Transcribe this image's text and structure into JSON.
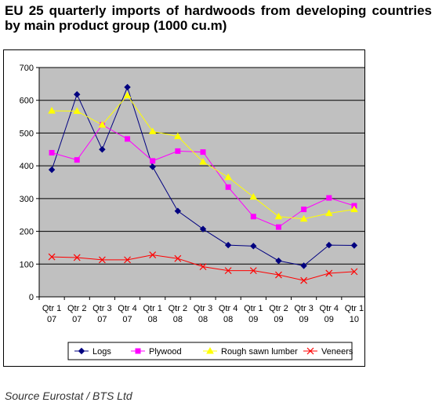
{
  "title": "EU 25 quarterly imports of hardwoods from developing countries by main product group (1000 cu.m)",
  "source": "Source Eurostat / BTS Ltd",
  "chart_data": {
    "type": "line",
    "categories": [
      [
        "Qtr 1",
        "07"
      ],
      [
        "Qtr 2",
        "07"
      ],
      [
        "Qtr 3",
        "07"
      ],
      [
        "Qtr 4",
        "07"
      ],
      [
        "Qtr 1",
        "08"
      ],
      [
        "Qtr 2",
        "08"
      ],
      [
        "Qtr 3",
        "08"
      ],
      [
        "Qtr 4",
        "08"
      ],
      [
        "Qtr 1",
        "09"
      ],
      [
        "Qtr 2",
        "09"
      ],
      [
        "Qtr 3",
        "09"
      ],
      [
        "Qtr 4",
        "09"
      ],
      [
        "Qtr 1",
        "10"
      ]
    ],
    "ylim": [
      0,
      700
    ],
    "yticks": [
      "0",
      "100",
      "200",
      "300",
      "400",
      "500",
      "600",
      "700"
    ],
    "grid": true,
    "legend_position": "bottom",
    "series": [
      {
        "name": "Logs",
        "color": "#000080",
        "marker": "diamond",
        "values": [
          388,
          618,
          450,
          640,
          397,
          262,
          207,
          158,
          155,
          110,
          95,
          158,
          157
        ]
      },
      {
        "name": "Plywood",
        "color": "#ff00ff",
        "marker": "square",
        "values": [
          440,
          418,
          525,
          482,
          415,
          445,
          442,
          335,
          245,
          213,
          267,
          302,
          278
        ]
      },
      {
        "name": "Rough sawn lumber",
        "color": "#ffff00",
        "marker": "triangle",
        "values": [
          568,
          567,
          525,
          615,
          505,
          490,
          412,
          365,
          305,
          245,
          238,
          255,
          267
        ]
      },
      {
        "name": "Veneers",
        "color": "#ff0000",
        "marker": "x",
        "values": [
          122,
          120,
          113,
          113,
          128,
          117,
          92,
          80,
          80,
          67,
          50,
          72,
          77
        ]
      }
    ]
  }
}
